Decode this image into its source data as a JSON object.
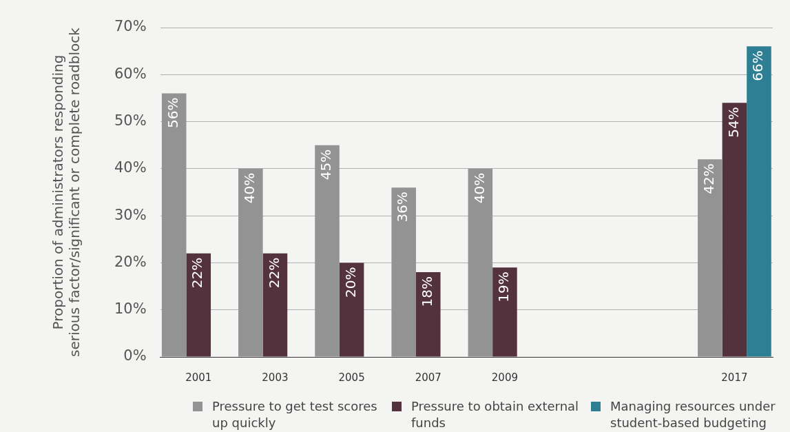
{
  "chart_data": {
    "type": "bar",
    "ylabel": "Proportion of administrators responding\nserious factor/significant or complete roadblock",
    "categories": [
      "2001",
      "2003",
      "2005",
      "2007",
      "2009",
      null,
      null,
      "2017"
    ],
    "series": [
      {
        "name": "Pressure to get test scores up quickly",
        "color": "#939393",
        "values": [
          56,
          40,
          45,
          36,
          40,
          null,
          null,
          42
        ],
        "value_labels": [
          "56%",
          "40%",
          "45%",
          "36%",
          "40%",
          null,
          null,
          "42%"
        ]
      },
      {
        "name": "Pressure to obtain external funds",
        "color": "#54323d",
        "values": [
          22,
          22,
          20,
          18,
          19,
          null,
          null,
          54
        ],
        "value_labels": [
          "22%",
          "22%",
          "20%",
          "18%",
          "19%",
          null,
          null,
          "54%"
        ]
      },
      {
        "name": "Managing resources under student-based budgeting",
        "color": "#2e7f93",
        "values": [
          null,
          null,
          null,
          null,
          null,
          null,
          null,
          66
        ],
        "value_labels": [
          null,
          null,
          null,
          null,
          null,
          null,
          null,
          "66%"
        ]
      }
    ],
    "ylim": [
      0,
      70
    ],
    "yticks": [
      {
        "value": 0,
        "label": "0%"
      },
      {
        "value": 10,
        "label": "10%"
      },
      {
        "value": 20,
        "label": "20%"
      },
      {
        "value": 30,
        "label": "30%"
      },
      {
        "value": 40,
        "label": "40%"
      },
      {
        "value": 50,
        "label": "50%"
      },
      {
        "value": 60,
        "label": "60%"
      },
      {
        "value": 70,
        "label": "70%"
      }
    ],
    "grid": "y",
    "legend": "bottom"
  }
}
